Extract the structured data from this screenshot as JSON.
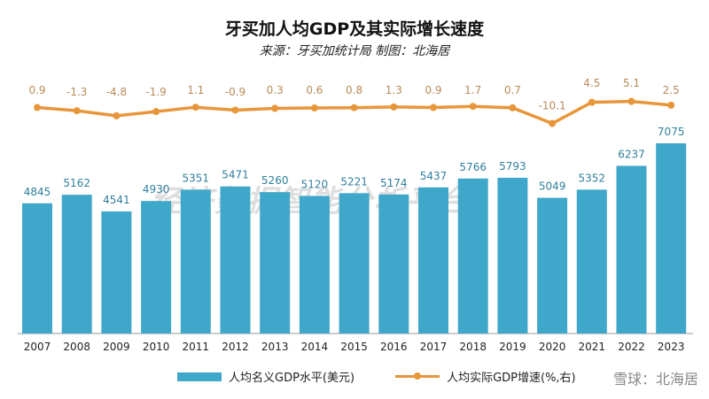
{
  "title": "牙买加人均GDP及其实际增长速度",
  "subtitle": "来源：牙买加统计局 制图：北海居",
  "watermark": "经济数据智能分析平台",
  "source_mark": "雪球：北海居",
  "chart_data": {
    "type": "bar+line",
    "categories": [
      "2007",
      "2008",
      "2009",
      "2010",
      "2011",
      "2012",
      "2013",
      "2014",
      "2015",
      "2016",
      "2017",
      "2018",
      "2019",
      "2020",
      "2021",
      "2022",
      "2023"
    ],
    "series": [
      {
        "name": "人均名义GDP水平(美元)",
        "type": "bar",
        "axis": "left",
        "color": "#3fa7c9",
        "values": [
          4845,
          5162,
          4541,
          4930,
          5351,
          5471,
          5260,
          5120,
          5221,
          5174,
          5437,
          5766,
          5793,
          5049,
          5352,
          6237,
          7075
        ]
      },
      {
        "name": "人均实际GDP增速(%,右)",
        "type": "line",
        "axis": "right",
        "color": "#e8963a",
        "values": [
          0.9,
          -1.3,
          -4.8,
          -1.9,
          1.1,
          -0.9,
          0.3,
          0.6,
          0.8,
          1.3,
          0.9,
          1.7,
          0.7,
          -10.1,
          4.5,
          5.1,
          2.5
        ]
      }
    ],
    "data_labels": true,
    "grid": false,
    "legend": "bottom"
  }
}
